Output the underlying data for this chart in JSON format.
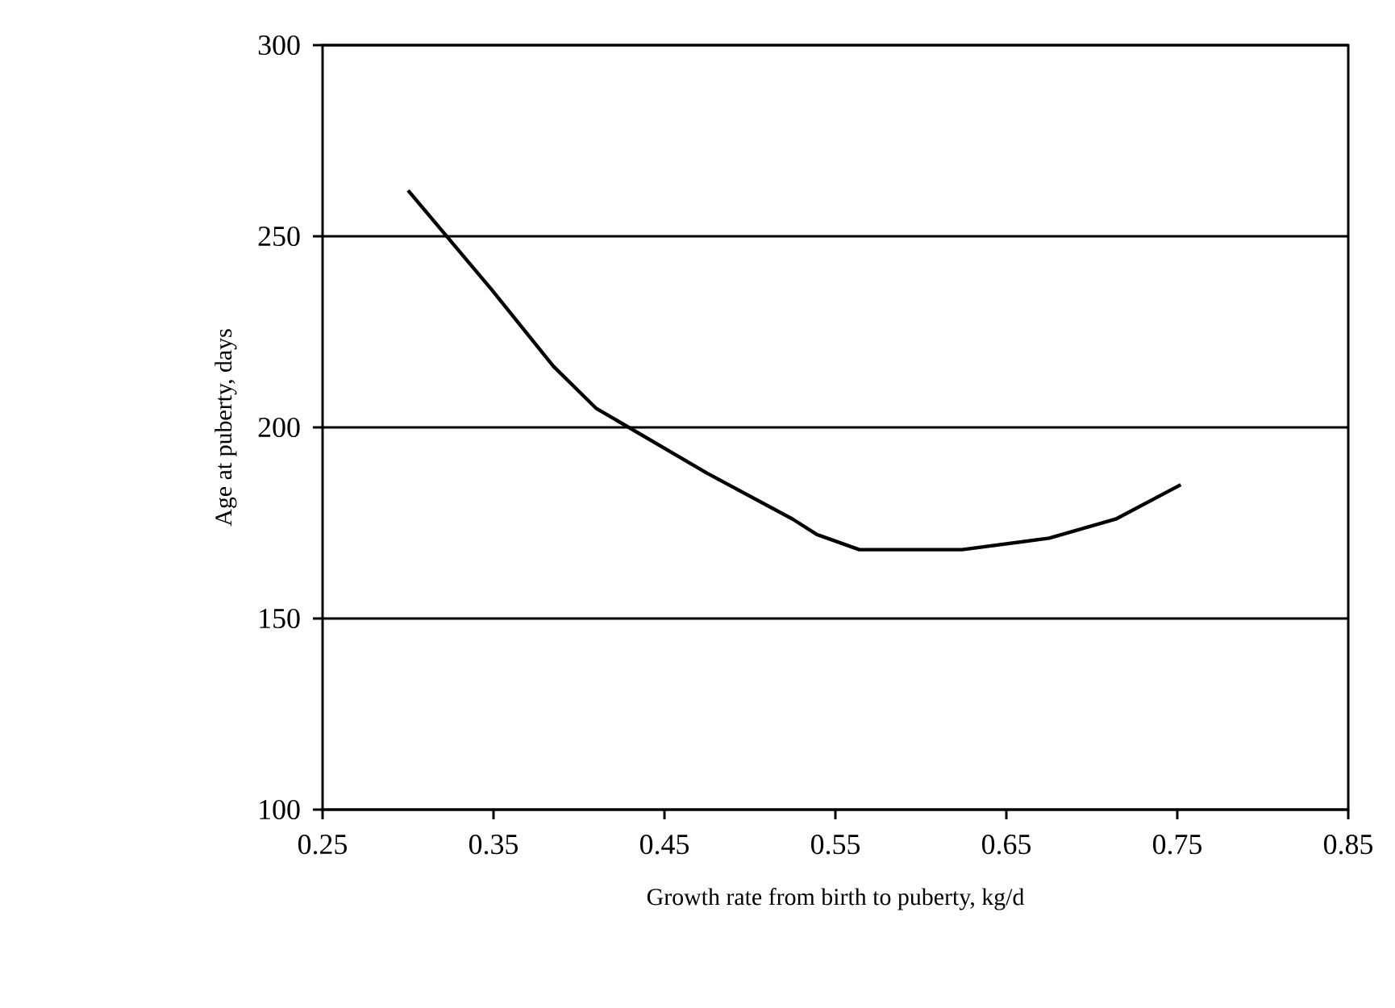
{
  "chart_data": {
    "type": "line",
    "xlabel": "Growth rate from birth to puberty, kg/d",
    "ylabel": "Age at puberty, days",
    "x": [
      0.3,
      0.349,
      0.385,
      0.41,
      0.475,
      0.525,
      0.539,
      0.564,
      0.624,
      0.675,
      0.714,
      0.752
    ],
    "series": [
      {
        "color": "#000000",
        "values": [
          262,
          236,
          216,
          205,
          188,
          176,
          172,
          168,
          168,
          171,
          176,
          185
        ]
      }
    ],
    "xlim": [
      0.25,
      0.85
    ],
    "ylim": [
      100,
      300
    ],
    "xticks": [
      0.25,
      0.35,
      0.45,
      0.55,
      0.65,
      0.75,
      0.85
    ],
    "yticks": [
      100,
      150,
      200,
      250,
      300
    ],
    "grid": "y",
    "marker": "none",
    "line_style": "solid"
  }
}
